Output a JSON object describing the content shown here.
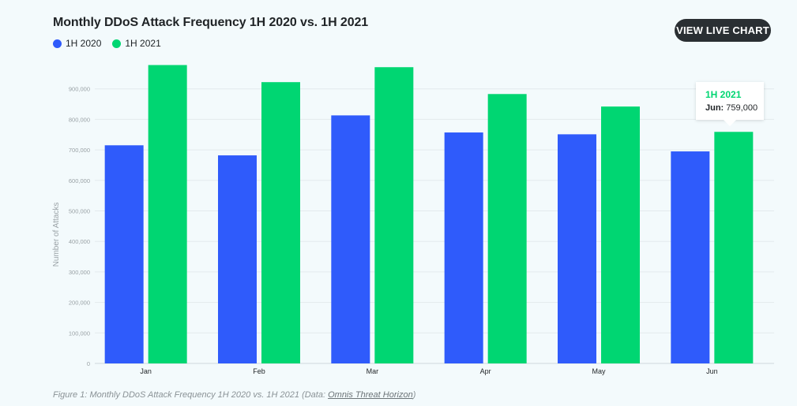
{
  "header": {
    "title": "Monthly DDoS Attack Frequency 1H 2020 vs. 1H 2021",
    "live_button_label": "VIEW LIVE CHART"
  },
  "colors": {
    "series_2020": "#2f5bfb",
    "series_2021": "#00d672",
    "grid": "#e3eaed",
    "axis_text": "#9aa2a6"
  },
  "chart_data": {
    "type": "bar",
    "title": "Monthly DDoS Attack Frequency 1H 2020 vs. 1H 2021",
    "xlabel": "",
    "ylabel": "Number of Attacks",
    "ylim": [
      0,
      1000000
    ],
    "yticks": [
      "0",
      "100,000",
      "200,000",
      "300,000",
      "400,000",
      "500,000",
      "600,000",
      "700,000",
      "800,000",
      "900,000"
    ],
    "ytick_values": [
      0,
      100000,
      200000,
      300000,
      400000,
      500000,
      600000,
      700000,
      800000,
      900000
    ],
    "grid": true,
    "legend": "top-left",
    "categories": [
      "Jan",
      "Feb",
      "Mar",
      "Apr",
      "May",
      "Jun"
    ],
    "series": [
      {
        "name": "1H 2020",
        "values": [
          715000,
          682000,
          813000,
          757000,
          751000,
          695000
        ]
      },
      {
        "name": "1H 2021",
        "values": [
          978000,
          922000,
          971000,
          883000,
          842000,
          759000
        ]
      }
    ]
  },
  "tooltip": {
    "series": "1H 2021",
    "label": "Jun:",
    "value": "759,000"
  },
  "caption": {
    "text": "Figure 1: Monthly DDoS Attack Frequency 1H 2020 vs. 1H 2021 (Data: ",
    "link": "Omnis Threat Horizon",
    "suffix": ")"
  }
}
